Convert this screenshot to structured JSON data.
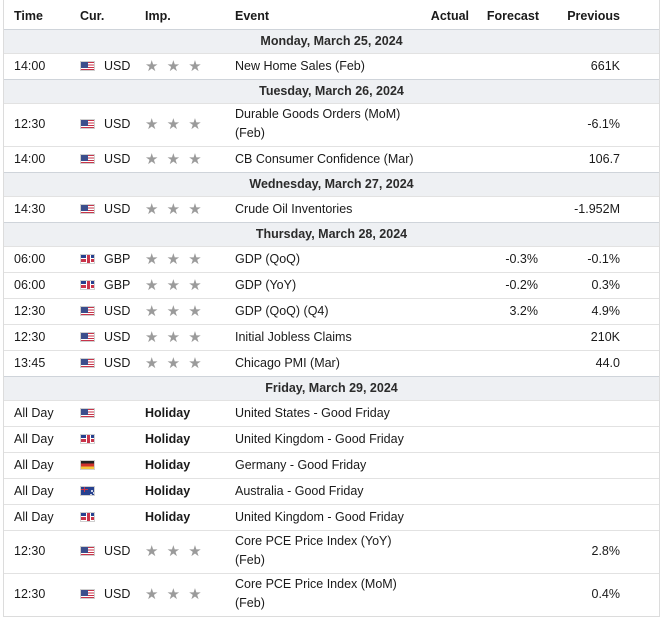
{
  "header": {
    "time": "Time",
    "currency": "Cur.",
    "importance": "Imp.",
    "event": "Event",
    "actual": "Actual",
    "forecast": "Forecast",
    "previous": "Previous"
  },
  "importance_icon": "star-icon",
  "importance_glyph": "★ ★ ★",
  "days": [
    {
      "date": "Monday, March 25, 2024",
      "events": [
        {
          "time": "14:00",
          "flag": "us",
          "currency": "USD",
          "stars": 3,
          "event": "New Home Sales (Feb)",
          "actual": "",
          "forecast": "",
          "previous": "661K"
        }
      ]
    },
    {
      "date": "Tuesday, March 26, 2024",
      "events": [
        {
          "time": "12:30",
          "flag": "us",
          "currency": "USD",
          "stars": 3,
          "event": "Durable Goods Orders (MoM) (Feb)",
          "actual": "",
          "forecast": "",
          "previous": "-6.1%",
          "tall": true
        },
        {
          "time": "14:00",
          "flag": "us",
          "currency": "USD",
          "stars": 3,
          "event": "CB Consumer Confidence (Mar)",
          "actual": "",
          "forecast": "",
          "previous": "106.7"
        }
      ]
    },
    {
      "date": "Wednesday, March 27, 2024",
      "events": [
        {
          "time": "14:30",
          "flag": "us",
          "currency": "USD",
          "stars": 3,
          "event": "Crude Oil Inventories",
          "actual": "",
          "forecast": "",
          "previous": "-1.952M"
        }
      ]
    },
    {
      "date": "Thursday, March 28, 2024",
      "events": [
        {
          "time": "06:00",
          "flag": "gb",
          "currency": "GBP",
          "stars": 3,
          "event": "GDP (QoQ)",
          "actual": "",
          "forecast": "-0.3%",
          "previous": "-0.1%"
        },
        {
          "time": "06:00",
          "flag": "gb",
          "currency": "GBP",
          "stars": 3,
          "event": "GDP (YoY)",
          "actual": "",
          "forecast": "-0.2%",
          "previous": "0.3%"
        },
        {
          "time": "12:30",
          "flag": "us",
          "currency": "USD",
          "stars": 3,
          "event": "GDP (QoQ) (Q4)",
          "actual": "",
          "forecast": "3.2%",
          "previous": "4.9%"
        },
        {
          "time": "12:30",
          "flag": "us",
          "currency": "USD",
          "stars": 3,
          "event": "Initial Jobless Claims",
          "actual": "",
          "forecast": "",
          "previous": "210K"
        },
        {
          "time": "13:45",
          "flag": "us",
          "currency": "USD",
          "stars": 3,
          "event": "Chicago PMI (Mar)",
          "actual": "",
          "forecast": "",
          "previous": "44.0"
        }
      ]
    },
    {
      "date": "Friday, March 29, 2024",
      "events": [
        {
          "time": "All Day",
          "flag": "us",
          "currency": "",
          "holiday": "Holiday",
          "event": "United States - Good Friday",
          "actual": "",
          "forecast": "",
          "previous": ""
        },
        {
          "time": "All Day",
          "flag": "gb",
          "currency": "",
          "holiday": "Holiday",
          "event": "United Kingdom - Good Friday",
          "actual": "",
          "forecast": "",
          "previous": ""
        },
        {
          "time": "All Day",
          "flag": "de",
          "currency": "",
          "holiday": "Holiday",
          "event": "Germany - Good Friday",
          "actual": "",
          "forecast": "",
          "previous": ""
        },
        {
          "time": "All Day",
          "flag": "au",
          "currency": "",
          "holiday": "Holiday",
          "event": "Australia - Good Friday",
          "actual": "",
          "forecast": "",
          "previous": ""
        },
        {
          "time": "All Day",
          "flag": "gb",
          "currency": "",
          "holiday": "Holiday",
          "event": "United Kingdom - Good Friday",
          "actual": "",
          "forecast": "",
          "previous": ""
        },
        {
          "time": "12:30",
          "flag": "us",
          "currency": "USD",
          "stars": 3,
          "event": "Core PCE Price Index (YoY) (Feb)",
          "actual": "",
          "forecast": "",
          "previous": "2.8%",
          "tall": true
        },
        {
          "time": "12:30",
          "flag": "us",
          "currency": "USD",
          "stars": 3,
          "event": "Core PCE Price Index (MoM) (Feb)",
          "actual": "",
          "forecast": "",
          "previous": "0.4%",
          "tall": true
        }
      ]
    }
  ]
}
